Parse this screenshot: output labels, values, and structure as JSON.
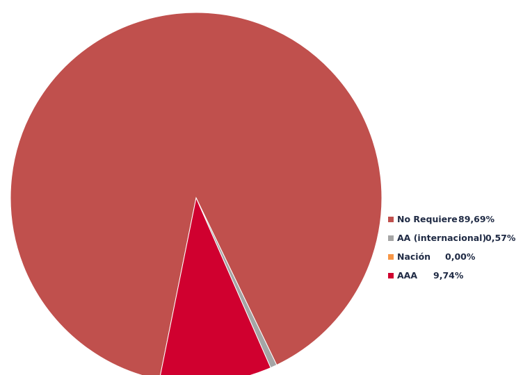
{
  "chart_data": {
    "type": "pie",
    "title": "",
    "slices": [
      {
        "label": "No Requiere",
        "value": 89.69,
        "display": "89,69%",
        "color": "#c0504d"
      },
      {
        "label": "AA (internacional)",
        "value": 0.57,
        "display": "0,57%",
        "color": "#a5a5a5"
      },
      {
        "label": "Nación",
        "value": 0.0,
        "display": "0,00%",
        "color": "#f79646"
      },
      {
        "label": "AAA",
        "value": 9.74,
        "display": "9,74%",
        "color": "#d0002f"
      }
    ],
    "legend_position": "right"
  }
}
